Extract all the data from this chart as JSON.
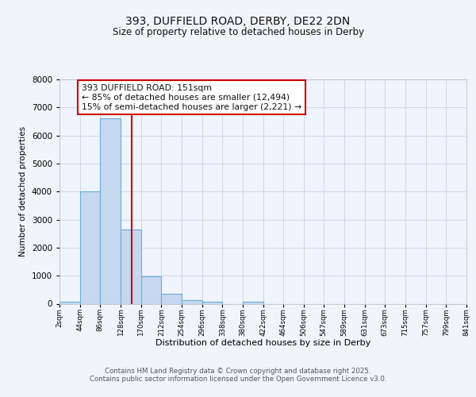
{
  "title1": "393, DUFFIELD ROAD, DERBY, DE22 2DN",
  "title2": "Size of property relative to detached houses in Derby",
  "xlabel": "Distribution of detached houses by size in Derby",
  "ylabel": "Number of detached properties",
  "footer1": "Contains HM Land Registry data © Crown copyright and database right 2025.",
  "footer2": "Contains public sector information licensed under the Open Government Licence v3.0.",
  "annotation_title": "393 DUFFIELD ROAD: 151sqm",
  "annotation_line1": "← 85% of detached houses are smaller (12,494)",
  "annotation_line2": "15% of semi-detached houses are larger (2,221) →",
  "bin_edges": [
    2,
    44,
    86,
    128,
    170,
    212,
    254,
    296,
    338,
    380,
    422,
    464,
    506,
    547,
    589,
    631,
    673,
    715,
    757,
    799,
    841
  ],
  "bin_counts": [
    70,
    4000,
    6600,
    2650,
    970,
    340,
    130,
    60,
    0,
    60,
    0,
    0,
    0,
    0,
    0,
    0,
    0,
    0,
    0,
    0
  ],
  "bar_color": "#c5d8f0",
  "bar_edge_color": "#6baed6",
  "vline_color": "#cc0000",
  "vline_x": 151,
  "annotation_box_edge": "#cc0000",
  "background_color": "#f2f4fb",
  "plot_bg_color": "#f0f4fc",
  "ylim": [
    0,
    8000
  ],
  "yticks": [
    0,
    1000,
    2000,
    3000,
    4000,
    5000,
    6000,
    7000,
    8000
  ],
  "grid_color": "#c8d4e8"
}
